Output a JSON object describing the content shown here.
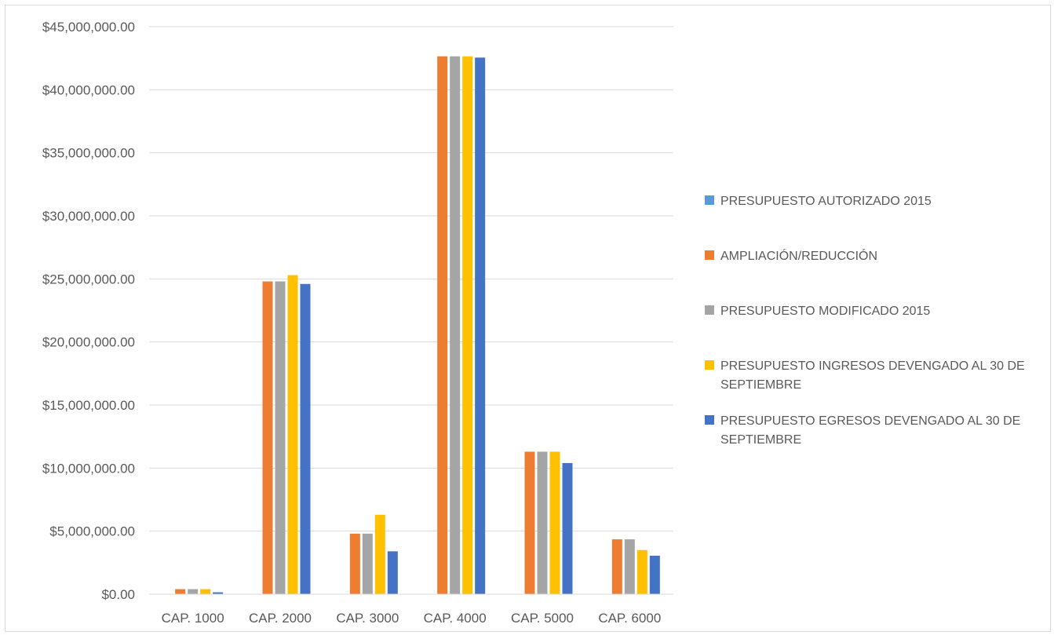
{
  "chart_data": {
    "type": "bar",
    "categories": [
      "CAP. 1000",
      "CAP. 2000",
      "CAP. 3000",
      "CAP. 4000",
      "CAP. 5000",
      "CAP. 6000"
    ],
    "series": [
      {
        "name": "PRESUPUESTO AUTORIZADO 2015",
        "color": "#5B9BD5",
        "values": [
          0,
          0,
          0,
          0,
          0,
          0
        ]
      },
      {
        "name": "AMPLIACIÓN/REDUCCIÓN",
        "color": "#ED7D31",
        "values": [
          400000,
          24800000,
          4800000,
          42650000,
          11300000,
          4350000
        ]
      },
      {
        "name": "PRESUPUESTO MODIFICADO 2015",
        "color": "#A5A5A5",
        "values": [
          400000,
          24800000,
          4800000,
          42650000,
          11300000,
          4350000
        ]
      },
      {
        "name": "PRESUPUESTO INGRESOS DEVENGADO AL 30 DE SEPTIEMBRE",
        "color": "#FFC000",
        "values": [
          400000,
          25300000,
          6300000,
          42650000,
          11300000,
          3500000
        ]
      },
      {
        "name": "PRESUPUESTO EGRESOS DEVENGADO AL 30 DE SEPTIEMBRE",
        "color": "#4472C4",
        "values": [
          150000,
          24600000,
          3400000,
          42550000,
          10400000,
          3050000
        ]
      }
    ],
    "yticks": [
      "$0.00",
      "$5,000,000.00",
      "$10,000,000.00",
      "$15,000,000.00",
      "$20,000,000.00",
      "$25,000,000.00",
      "$30,000,000.00",
      "$35,000,000.00",
      "$40,000,000.00",
      "$45,000,000.00"
    ],
    "ylim": [
      0,
      45000000
    ],
    "grid": true,
    "legend": "right",
    "title": "",
    "xlabel": "",
    "ylabel": ""
  }
}
